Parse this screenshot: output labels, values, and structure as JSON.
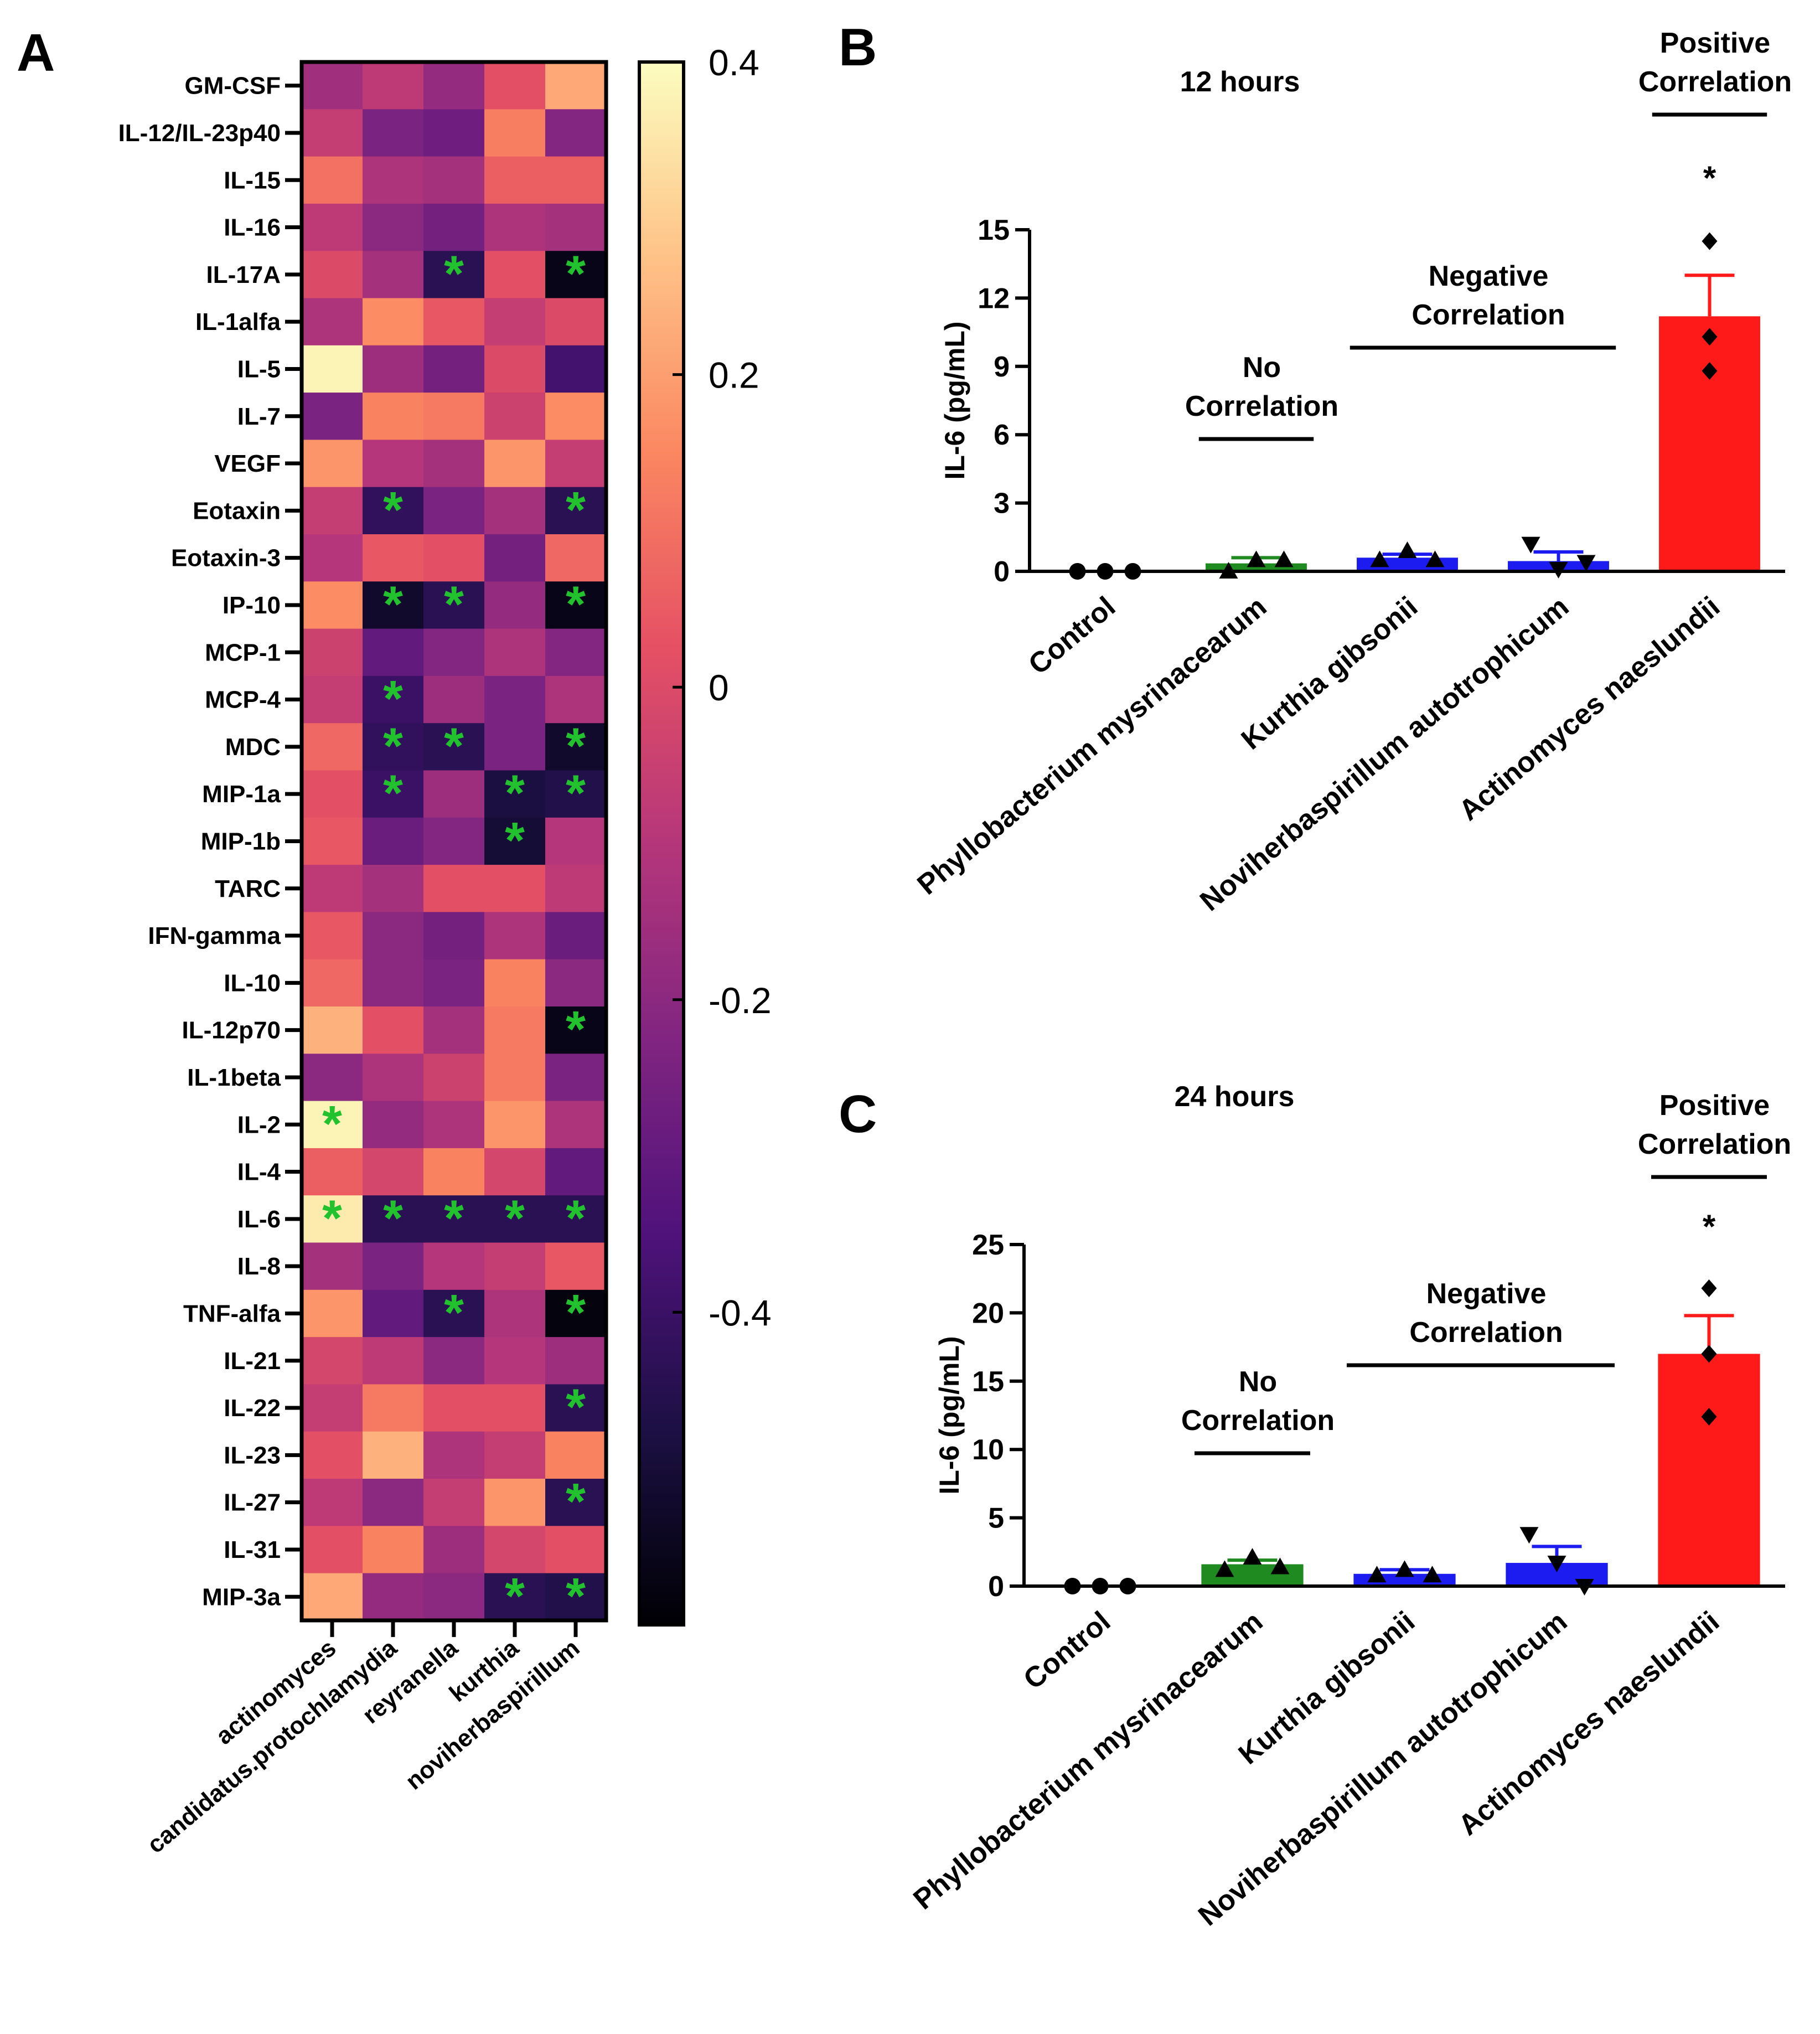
{
  "panels": {
    "a": "A",
    "b": "B",
    "c": "C"
  },
  "chart_data": [
    {
      "panel": "A",
      "type": "heatmap",
      "title": "",
      "rows": [
        "GM-CSF",
        "IL-12/IL-23p40",
        "IL-15",
        "IL-16",
        "IL-17A",
        "IL-1alfa",
        "IL-5",
        "IL-7",
        "VEGF",
        "Eotaxin",
        "Eotaxin-3",
        "IP-10",
        "MCP-1",
        "MCP-4",
        "MDC",
        "MIP-1a",
        "MIP-1b",
        "TARC",
        "IFN-gamma",
        "IL-10",
        "IL-12p70",
        "IL-1beta",
        "IL-2",
        "IL-4",
        "IL-6",
        "IL-8",
        "TNF-alfa",
        "IL-21",
        "IL-22",
        "IL-23",
        "IL-27",
        "IL-31",
        "MIP-3a"
      ],
      "columns": [
        "actinomyces",
        "candidatus.protochlamydia",
        "reyranella",
        "kurthia",
        "noviherbaspirillum"
      ],
      "values": [
        [
          -0.15,
          -0.08,
          -0.18,
          0.02,
          0.22
        ],
        [
          -0.06,
          -0.24,
          -0.27,
          0.13,
          -0.22
        ],
        [
          0.1,
          -0.12,
          -0.14,
          0.06,
          0.06
        ],
        [
          -0.08,
          -0.2,
          -0.26,
          -0.12,
          -0.14
        ],
        [
          0.0,
          -0.14,
          -0.44,
          0.02,
          -0.56
        ],
        [
          -0.12,
          0.16,
          0.04,
          -0.06,
          0.0
        ],
        [
          0.38,
          -0.16,
          -0.26,
          0.0,
          -0.38
        ],
        [
          -0.24,
          0.14,
          0.12,
          -0.04,
          0.16
        ],
        [
          0.18,
          -0.1,
          -0.14,
          0.18,
          -0.06
        ],
        [
          -0.06,
          -0.42,
          -0.24,
          -0.14,
          -0.44
        ],
        [
          -0.1,
          0.04,
          0.02,
          -0.26,
          0.08
        ],
        [
          0.16,
          -0.52,
          -0.44,
          -0.18,
          -0.56
        ],
        [
          -0.04,
          -0.3,
          -0.22,
          -0.12,
          -0.22
        ],
        [
          -0.06,
          -0.4,
          -0.16,
          -0.24,
          -0.12
        ],
        [
          0.08,
          -0.42,
          -0.44,
          -0.24,
          -0.52
        ],
        [
          0.02,
          -0.4,
          -0.16,
          -0.48,
          -0.46
        ],
        [
          0.04,
          -0.28,
          -0.22,
          -0.5,
          -0.1
        ],
        [
          -0.08,
          -0.14,
          0.02,
          0.02,
          -0.08
        ],
        [
          0.04,
          -0.2,
          -0.26,
          -0.12,
          -0.28
        ],
        [
          0.08,
          -0.2,
          -0.24,
          0.14,
          -0.2
        ],
        [
          0.24,
          0.02,
          -0.14,
          0.12,
          -0.56
        ],
        [
          -0.2,
          -0.12,
          -0.04,
          0.12,
          -0.24
        ],
        [
          0.38,
          -0.18,
          -0.12,
          0.18,
          -0.12
        ],
        [
          0.06,
          -0.02,
          0.14,
          -0.02,
          -0.3
        ],
        [
          0.36,
          -0.44,
          -0.44,
          -0.44,
          -0.44
        ],
        [
          -0.14,
          -0.24,
          -0.1,
          -0.06,
          0.04
        ],
        [
          0.18,
          -0.3,
          -0.44,
          -0.12,
          -0.58
        ],
        [
          -0.02,
          -0.08,
          -0.2,
          -0.1,
          -0.16
        ],
        [
          -0.06,
          0.12,
          0.02,
          0.02,
          -0.44
        ],
        [
          0.02,
          0.24,
          -0.12,
          -0.06,
          0.14
        ],
        [
          -0.08,
          -0.2,
          -0.06,
          0.18,
          -0.44
        ],
        [
          0.02,
          0.14,
          -0.16,
          -0.02,
          0.02
        ],
        [
          0.22,
          -0.18,
          -0.2,
          -0.44,
          -0.46
        ]
      ],
      "significant": [
        [
          4,
          2
        ],
        [
          4,
          4
        ],
        [
          9,
          1
        ],
        [
          9,
          4
        ],
        [
          11,
          1
        ],
        [
          11,
          2
        ],
        [
          11,
          4
        ],
        [
          13,
          1
        ],
        [
          14,
          1
        ],
        [
          14,
          2
        ],
        [
          14,
          4
        ],
        [
          15,
          1
        ],
        [
          15,
          3
        ],
        [
          15,
          4
        ],
        [
          16,
          3
        ],
        [
          20,
          4
        ],
        [
          22,
          0
        ],
        [
          24,
          0
        ],
        [
          24,
          1
        ],
        [
          24,
          2
        ],
        [
          24,
          3
        ],
        [
          24,
          4
        ],
        [
          26,
          2
        ],
        [
          26,
          4
        ],
        [
          28,
          4
        ],
        [
          30,
          4
        ],
        [
          32,
          3
        ],
        [
          32,
          4
        ]
      ],
      "significance_marker": "*",
      "colorbar": {
        "min": -0.6,
        "max": 0.4,
        "ticks": [
          0.4,
          0.2,
          0,
          -0.2,
          -0.4
        ],
        "tick_labels": [
          "0.4",
          "0.2",
          "0",
          "-0.2",
          "-0.4"
        ],
        "colormap": "magma"
      }
    },
    {
      "panel": "B",
      "type": "bar",
      "title": "12 hours",
      "ylabel": "IL-6 (pg/mL)",
      "ylim": [
        0,
        15
      ],
      "yticks": [
        0,
        3,
        6,
        9,
        12,
        15
      ],
      "categories": [
        "Control",
        "Phyllobacterium mysrinacearum",
        "Kurthia gibsonii",
        "Noviherbaspirillum autotrophicum",
        "Actinomyces naeslundii"
      ],
      "means": [
        0.0,
        0.35,
        0.6,
        0.45,
        11.2
      ],
      "errors": [
        0.0,
        0.25,
        0.15,
        0.4,
        1.8
      ],
      "points": [
        [
          0,
          0,
          0
        ],
        [
          0.0,
          0.5,
          0.5
        ],
        [
          0.5,
          0.9,
          0.5
        ],
        [
          1.2,
          0.1,
          0.4
        ],
        [
          14.5,
          10.3,
          8.8
        ]
      ],
      "colors": [
        "#000000",
        "#1f8a1f",
        "#1c1cf0",
        "#1c1cf0",
        "#ff1a1a"
      ],
      "markers": [
        "circle",
        "triangle",
        "triangle",
        "triangle-down",
        "diamond"
      ],
      "groups": [
        {
          "label": [
            "No",
            "Correlation"
          ],
          "from": 1,
          "to": 1
        },
        {
          "label": [
            "Negative",
            "Correlation"
          ],
          "from": 2,
          "to": 3
        },
        {
          "label": [
            "Positive",
            "Correlation"
          ],
          "from": 4,
          "to": 4
        }
      ],
      "significance": {
        "category": 4,
        "label": "*"
      }
    },
    {
      "panel": "C",
      "type": "bar",
      "title": "24 hours",
      "ylabel": "IL-6 (pg/mL)",
      "ylim": [
        0,
        25
      ],
      "yticks": [
        0,
        5,
        10,
        15,
        20,
        25
      ],
      "categories": [
        "Control",
        "Phyllobacterium mysrinacearum",
        "Kurthia gibsonii",
        "Noviherbaspirillum autotrophicum",
        "Actinomyces naeslundii"
      ],
      "means": [
        0.0,
        1.6,
        0.9,
        1.7,
        17.0
      ],
      "errors": [
        0.0,
        0.3,
        0.3,
        1.2,
        2.8
      ],
      "points": [
        [
          0,
          0,
          0
        ],
        [
          1.2,
          2.1,
          1.4
        ],
        [
          0.8,
          1.2,
          0.8
        ],
        [
          3.8,
          1.7,
          0.0
        ],
        [
          21.8,
          17.0,
          12.4
        ]
      ],
      "colors": [
        "#000000",
        "#1f8a1f",
        "#1c1cf0",
        "#1c1cf0",
        "#ff1a1a"
      ],
      "markers": [
        "circle",
        "triangle",
        "triangle",
        "triangle-down",
        "diamond"
      ],
      "groups": [
        {
          "label": [
            "No",
            "Correlation"
          ],
          "from": 1,
          "to": 1
        },
        {
          "label": [
            "Negative",
            "Correlation"
          ],
          "from": 2,
          "to": 3
        },
        {
          "label": [
            "Positive",
            "Correlation"
          ],
          "from": 4,
          "to": 4
        }
      ],
      "significance": {
        "category": 4,
        "label": "*"
      }
    }
  ]
}
